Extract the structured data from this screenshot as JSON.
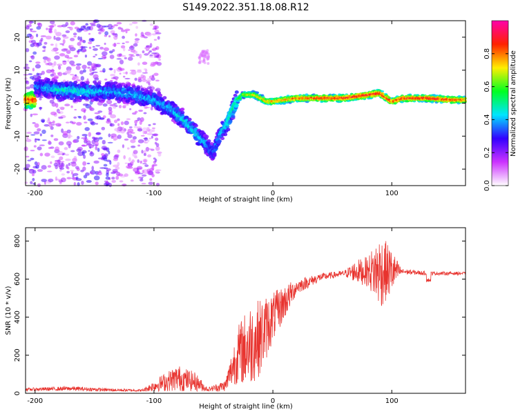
{
  "title": "S149.2022.351.18.08.R12",
  "colors": {
    "line": "#e8332e",
    "axis": "#000000",
    "background": "#ffffff"
  },
  "chart_data": [
    {
      "type": "heatmap",
      "xlabel": "Height of straight line (km)",
      "ylabel": "Frequency (Hz)",
      "xlim": [
        -208,
        162
      ],
      "ylim": [
        -25,
        25
      ],
      "x_ticks": [
        -200,
        -100,
        0,
        100
      ],
      "y_ticks": [
        -20,
        -10,
        0,
        10,
        20
      ],
      "colorbar": {
        "label": "Normalized spectral amplitude",
        "range": [
          0,
          1
        ],
        "ticks": [
          0.0,
          0.2,
          0.4,
          0.6,
          0.8
        ],
        "colors": [
          "#ffffff",
          "#cc33ff",
          "#3300ff",
          "#00e5ff",
          "#00ff22",
          "#ffee00",
          "#ff2200",
          "#ff00aa"
        ]
      },
      "ridge": [
        {
          "x": -200,
          "f": 5,
          "a": 0.35
        },
        {
          "x": -180,
          "f": 4,
          "a": 0.45
        },
        {
          "x": -160,
          "f": 3.5,
          "a": 0.45
        },
        {
          "x": -140,
          "f": 3.5,
          "a": 0.4
        },
        {
          "x": -120,
          "f": 3,
          "a": 0.4
        },
        {
          "x": -100,
          "f": 1,
          "a": 0.4
        },
        {
          "x": -85,
          "f": -2,
          "a": 0.42
        },
        {
          "x": -75,
          "f": -5,
          "a": 0.45
        },
        {
          "x": -65,
          "f": -9,
          "a": 0.45
        },
        {
          "x": -55,
          "f": -13,
          "a": 0.4
        },
        {
          "x": -50,
          "f": -15,
          "a": 0.35
        },
        {
          "x": -45,
          "f": -10,
          "a": 0.4
        },
        {
          "x": -40,
          "f": -7,
          "a": 0.45
        },
        {
          "x": -35,
          "f": -3,
          "a": 0.5
        },
        {
          "x": -30,
          "f": 1,
          "a": 0.55
        },
        {
          "x": -25,
          "f": 2.5,
          "a": 0.65
        },
        {
          "x": -15,
          "f": 2.5,
          "a": 0.75
        },
        {
          "x": -5,
          "f": 0.5,
          "a": 0.75
        },
        {
          "x": 0,
          "f": 0.5,
          "a": 0.78
        },
        {
          "x": 20,
          "f": 1.5,
          "a": 0.85
        },
        {
          "x": 40,
          "f": 1.5,
          "a": 0.88
        },
        {
          "x": 60,
          "f": 1.5,
          "a": 0.9
        },
        {
          "x": 80,
          "f": 2.5,
          "a": 0.92
        },
        {
          "x": 90,
          "f": 3,
          "a": 0.93
        },
        {
          "x": 100,
          "f": 0.5,
          "a": 0.85
        },
        {
          "x": 110,
          "f": 1.5,
          "a": 0.9
        },
        {
          "x": 130,
          "f": 1.5,
          "a": 0.9
        },
        {
          "x": 150,
          "f": 1,
          "a": 0.88
        },
        {
          "x": 162,
          "f": 1,
          "a": 0.85
        }
      ]
    },
    {
      "type": "line",
      "xlabel": "Height of straight line (km)",
      "ylabel": "SNR (10 * v/v)",
      "xlim": [
        -208,
        162
      ],
      "ylim": [
        0,
        870
      ],
      "x_ticks": [
        -200,
        -100,
        0,
        100
      ],
      "y_ticks": [
        0,
        200,
        400,
        600,
        800
      ],
      "envelope": [
        {
          "x": -208,
          "mean": 20,
          "amp": 8
        },
        {
          "x": -170,
          "mean": 25,
          "amp": 12
        },
        {
          "x": -140,
          "mean": 18,
          "amp": 8
        },
        {
          "x": -110,
          "mean": 15,
          "amp": 6
        },
        {
          "x": -95,
          "mean": 50,
          "amp": 40
        },
        {
          "x": -80,
          "mean": 80,
          "amp": 70
        },
        {
          "x": -65,
          "mean": 60,
          "amp": 50
        },
        {
          "x": -55,
          "mean": 20,
          "amp": 10
        },
        {
          "x": -40,
          "mean": 40,
          "amp": 30
        },
        {
          "x": -30,
          "mean": 200,
          "amp": 150
        },
        {
          "x": -20,
          "mean": 250,
          "amp": 220
        },
        {
          "x": -10,
          "mean": 300,
          "amp": 200
        },
        {
          "x": 0,
          "mean": 400,
          "amp": 130
        },
        {
          "x": 10,
          "mean": 480,
          "amp": 90
        },
        {
          "x": 20,
          "mean": 560,
          "amp": 40
        },
        {
          "x": 40,
          "mean": 610,
          "amp": 20
        },
        {
          "x": 60,
          "mean": 630,
          "amp": 15
        },
        {
          "x": 70,
          "mean": 640,
          "amp": 60
        },
        {
          "x": 80,
          "mean": 640,
          "amp": 80
        },
        {
          "x": 90,
          "mean": 640,
          "amp": 200
        },
        {
          "x": 100,
          "mean": 640,
          "amp": 120
        },
        {
          "x": 108,
          "mean": 640,
          "amp": 15
        },
        {
          "x": 130,
          "mean": 630,
          "amp": 10
        },
        {
          "x": 162,
          "mean": 630,
          "amp": 8
        }
      ]
    }
  ]
}
